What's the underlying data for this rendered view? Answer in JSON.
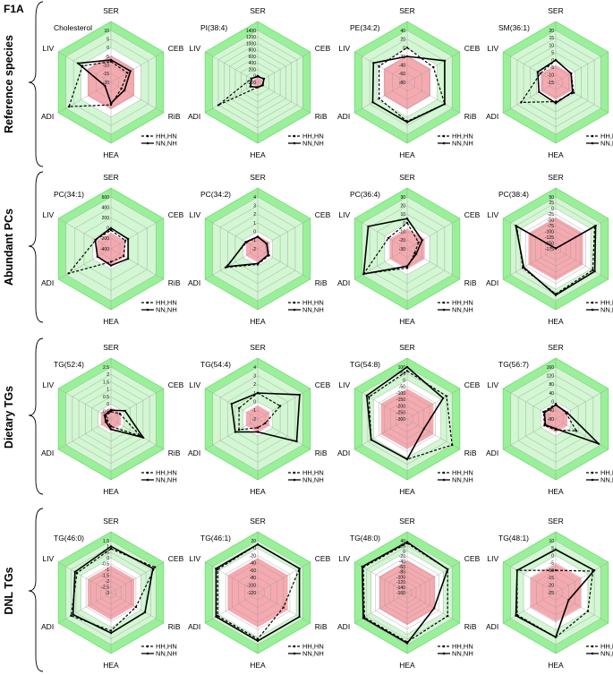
{
  "figure": {
    "label": "F1A"
  },
  "axes_order": [
    "SER",
    "CEB",
    "RiB",
    "HEA",
    "ADI",
    "LIV"
  ],
  "legend": [
    {
      "label": "HH,HN",
      "style": "dashed"
    },
    {
      "label": "NN,NH",
      "style": "solid"
    }
  ],
  "colors": {
    "green": "#99f099",
    "green_light": "#d2f7d2",
    "pink": "#f5aab0",
    "line": "#000000",
    "grid": "#9a9a9a"
  },
  "groups": [
    {
      "label": "Reference species"
    },
    {
      "label": "Abundant PCs"
    },
    {
      "label": "Dietary TGs"
    },
    {
      "label": "DNL TGs"
    }
  ],
  "chart_data": [
    {
      "type": "radar",
      "title": "Cholesterol",
      "row": 0,
      "col": 0,
      "ticks": [
        "10",
        "5",
        "0",
        "-5",
        "-10",
        "-15",
        "-20"
      ],
      "min": -20,
      "max": 10,
      "zero": 0,
      "series": [
        {
          "name": "HH,HN",
          "values": [
            -8,
            -9,
            -13,
            -7,
            8,
            -1
          ]
        },
        {
          "name": "NN,NH",
          "values": [
            -7,
            -7,
            -11,
            -8,
            -16,
            2
          ]
        }
      ]
    },
    {
      "type": "radar",
      "title": "PI(38:4)",
      "row": 0,
      "col": 1,
      "ticks": [
        "1400",
        "1200",
        "1000",
        "800",
        "600",
        "400",
        "200",
        "0",
        "-200"
      ],
      "min": -200,
      "max": 1400,
      "zero": 0,
      "series": [
        {
          "name": "HH,HN",
          "values": [
            0,
            10,
            -30,
            -50,
            1200,
            30
          ]
        },
        {
          "name": "NN,NH",
          "values": [
            -20,
            20,
            -20,
            -50,
            60,
            30
          ]
        }
      ]
    },
    {
      "type": "radar",
      "title": "PE(34:2)",
      "row": 0,
      "col": 2,
      "ticks": [
        "40",
        "20",
        "0",
        "-20",
        "-40",
        "-60",
        "-80"
      ],
      "min": -80,
      "max": 40,
      "zero": 0,
      "series": [
        {
          "name": "HH,HN",
          "values": [
            0,
            -10,
            20,
            10,
            -5,
            -5
          ]
        },
        {
          "name": "NN,NH",
          "values": [
            -20,
            20,
            20,
            12,
            12,
            10
          ]
        }
      ]
    },
    {
      "type": "radar",
      "title": "SM(36:1)",
      "row": 0,
      "col": 3,
      "ticks": [
        "20",
        "15",
        "10",
        "5",
        "0",
        "-5",
        "-10",
        "-15"
      ],
      "min": -15,
      "max": 20,
      "zero": 0,
      "series": [
        {
          "name": "HH,HN",
          "values": [
            0,
            -3,
            -1,
            -2,
            12,
            -3
          ]
        },
        {
          "name": "NN,NH",
          "values": [
            0,
            -3,
            -2,
            -1,
            -2,
            -1
          ]
        }
      ]
    },
    {
      "type": "radar",
      "title": "PC(34:1)",
      "row": 1,
      "col": 0,
      "ticks": [
        "600",
        "400",
        "200",
        "0",
        "-200",
        "-400"
      ],
      "min": -400,
      "max": 600,
      "zero": 0,
      "series": [
        {
          "name": "HH,HN",
          "values": [
            -40,
            -80,
            -120,
            -150,
            540,
            -60
          ]
        },
        {
          "name": "NN,NH",
          "values": [
            0,
            -20,
            -20,
            -80,
            -100,
            -50
          ]
        }
      ]
    },
    {
      "type": "radar",
      "title": "PC(34:2)",
      "row": 1,
      "col": 1,
      "ticks": [
        "4",
        "3",
        "2",
        "1",
        "0",
        "-1",
        "-2"
      ],
      "min": -2,
      "max": 4,
      "zero": 0,
      "series": [
        {
          "name": "HH,HN",
          "values": [
            -0.6,
            -0.8,
            -0.5,
            -0.2,
            2.3,
            -0.5
          ]
        },
        {
          "name": "NN,NH",
          "values": [
            -0.6,
            -0.8,
            -0.6,
            -0.3,
            2.1,
            -0.4
          ]
        }
      ]
    },
    {
      "type": "radar",
      "title": "PC(36:4)",
      "row": 1,
      "col": 2,
      "ticks": [
        "30",
        "20",
        "10",
        "0",
        "-10",
        "-20",
        "-30"
      ],
      "min": -30,
      "max": 30,
      "zero": 0,
      "series": [
        {
          "name": "HH,HN",
          "values": [
            0,
            -15,
            -20,
            -8,
            28,
            -5
          ]
        },
        {
          "name": "NN,NH",
          "values": [
            5,
            -10,
            -18,
            -10,
            28,
            22
          ]
        }
      ]
    },
    {
      "type": "radar",
      "title": "PC(38:4)",
      "row": 1,
      "col": 3,
      "ticks": [
        "50",
        "25",
        "0",
        "-25",
        "-50",
        "-75",
        "-100",
        "-125",
        "-150",
        "-175"
      ],
      "min": -175,
      "max": 50,
      "zero": 0,
      "series": [
        {
          "name": "HH,HN",
          "values": [
            -175,
            20,
            10,
            20,
            -10,
            20
          ]
        },
        {
          "name": "NN,NH",
          "values": [
            -175,
            25,
            20,
            25,
            -15,
            25
          ]
        }
      ]
    },
    {
      "type": "radar",
      "title": "TG(52:4)",
      "row": 2,
      "col": 0,
      "ticks": [
        "2.5",
        "2",
        "1.5",
        "1",
        "0.5",
        "0",
        "-0.5",
        "-1"
      ],
      "min": -1,
      "max": 2.5,
      "zero": 0,
      "series": [
        {
          "name": "HH,HN",
          "values": [
            -0.5,
            -0.3,
            1.3,
            -0.5,
            -0.7,
            -0.6
          ]
        },
        {
          "name": "NN,NH",
          "values": [
            -0.4,
            0.1,
            1.5,
            -0.3,
            -0.6,
            -0.5
          ]
        }
      ]
    },
    {
      "type": "radar",
      "title": "TG(54:4)",
      "row": 2,
      "col": 1,
      "ticks": [
        "4",
        "3",
        "2",
        "1",
        "0",
        "-1",
        "-2"
      ],
      "min": -2,
      "max": 4,
      "zero": 0,
      "series": [
        {
          "name": "HH,HN",
          "values": [
            1,
            1,
            -1,
            -1,
            0.5,
            0.5
          ]
        },
        {
          "name": "NN,NH",
          "values": [
            1,
            3.6,
            3.2,
            -0.5,
            1,
            1.5
          ]
        }
      ]
    },
    {
      "type": "radar",
      "title": "TG(54:8)",
      "row": 2,
      "col": 2,
      "ticks": [
        "100",
        "50",
        "0",
        "-50",
        "-100",
        "-150",
        "-200",
        "-250",
        "-300"
      ],
      "min": -300,
      "max": 100,
      "zero": 0,
      "series": [
        {
          "name": "HH,HN",
          "values": [
            70,
            50,
            100,
            10,
            20,
            40
          ]
        },
        {
          "name": "NN,NH",
          "values": [
            100,
            20,
            -150,
            10,
            20,
            60
          ]
        }
      ]
    },
    {
      "type": "radar",
      "title": "TG(56:7)",
      "row": 2,
      "col": 3,
      "ticks": [
        "160",
        "120",
        "80",
        "40",
        "0",
        "-40",
        "-80"
      ],
      "min": -80,
      "max": 160,
      "zero": 0,
      "series": [
        {
          "name": "HH,HN",
          "values": [
            -10,
            -25,
            30,
            -30,
            -20,
            -15
          ]
        },
        {
          "name": "NN,NH",
          "values": [
            -15,
            -20,
            150,
            -35,
            -25,
            -20
          ]
        }
      ]
    },
    {
      "type": "radar",
      "title": "TG(46:0)",
      "row": 3,
      "col": 0,
      "ticks": [
        "1.5",
        "1",
        "0.5",
        "0",
        "-0.5",
        "-1",
        "-1.5",
        "-2",
        "-2.5",
        "-3"
      ],
      "min": -3,
      "max": 1.5,
      "zero": 0,
      "series": [
        {
          "name": "HH,HN",
          "values": [
            0.8,
            1.4,
            -0.5,
            0.3,
            1,
            0.4
          ]
        },
        {
          "name": "NN,NH",
          "values": [
            1,
            1.2,
            0.4,
            0.5,
            0.8,
            0.6
          ]
        }
      ]
    },
    {
      "type": "radar",
      "title": "TG(46:1)",
      "row": 3,
      "col": 1,
      "ticks": [
        "20",
        "0",
        "-20",
        "-40",
        "-60",
        "-80",
        "-100",
        "-120"
      ],
      "min": -120,
      "max": 20,
      "zero": 0,
      "series": [
        {
          "name": "HH,HN",
          "values": [
            10,
            10,
            -40,
            5,
            5,
            5
          ]
        },
        {
          "name": "NN,NH",
          "values": [
            10,
            10,
            10,
            10,
            10,
            10
          ]
        }
      ]
    },
    {
      "type": "radar",
      "title": "TG(48:0)",
      "row": 3,
      "col": 2,
      "ticks": [
        "40",
        "20",
        "0",
        "-20",
        "-40",
        "-60",
        "-80",
        "-100",
        "-120",
        "-140",
        "-160"
      ],
      "min": -160,
      "max": 40,
      "zero": 0,
      "series": [
        {
          "name": "HH,HN",
          "values": [
            30,
            20,
            20,
            30,
            30,
            35
          ]
        },
        {
          "name": "NN,NH",
          "values": [
            35,
            20,
            -40,
            35,
            35,
            40
          ]
        }
      ]
    },
    {
      "type": "radar",
      "title": "TG(48:1)",
      "row": 3,
      "col": 3,
      "ticks": [
        "10",
        "5",
        "0",
        "-5",
        "-10",
        "-15",
        "-20",
        "-25"
      ],
      "min": -25,
      "max": 10,
      "zero": 0,
      "series": [
        {
          "name": "HH,HN",
          "values": [
            -10,
            4,
            0,
            5,
            5,
            5
          ]
        },
        {
          "name": "NN,NH",
          "values": [
            4,
            5,
            -15,
            5,
            6,
            5
          ]
        }
      ]
    }
  ]
}
